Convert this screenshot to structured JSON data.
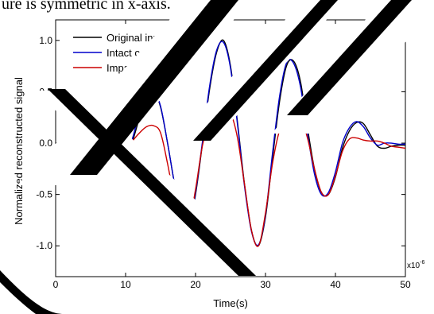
{
  "page": {
    "top_text": "ure is symmetric in x-axis."
  },
  "chart_data": {
    "type": "line",
    "title": "",
    "xlabel": "Time(s)",
    "ylabel": "Normalized reconstructed signal",
    "x_multiplier_base": "x10",
    "x_multiplier_exp": "-6",
    "xlim": [
      0,
      50
    ],
    "ylim": [
      -1.3,
      1.2
    ],
    "xticks": [
      0,
      10,
      20,
      30,
      40,
      50
    ],
    "xtick_labels": [
      "0",
      "10",
      "20",
      "30",
      "40",
      "50"
    ],
    "yticks": [
      -1.0,
      -0.5,
      0.0,
      0.5,
      1.0
    ],
    "ytick_labels": [
      "-1.0",
      "-0.5",
      "0.0",
      "0.5",
      "1.0"
    ],
    "grid": false,
    "legend_position": "top-left",
    "series": [
      {
        "name": "Original input",
        "color": "#000000",
        "x": [
          0,
          2,
          3,
          4,
          5,
          6,
          7,
          8,
          9,
          10,
          11,
          12,
          13,
          14,
          15,
          16,
          17,
          18,
          19,
          20,
          21,
          22,
          23,
          24,
          25,
          26,
          27,
          28,
          29,
          30,
          31,
          32,
          33,
          34,
          35,
          36,
          37,
          38,
          39,
          40,
          41,
          42,
          43,
          44,
          45,
          46,
          47,
          48,
          49,
          50
        ],
        "y": [
          0.0,
          0.0,
          0.02,
          0.05,
          0.06,
          0.04,
          -0.02,
          -0.12,
          -0.2,
          -0.16,
          0.02,
          0.25,
          0.45,
          0.5,
          0.35,
          0.0,
          -0.4,
          -0.75,
          -0.82,
          -0.5,
          0.0,
          0.52,
          0.88,
          1.0,
          0.75,
          0.2,
          -0.4,
          -0.85,
          -1.0,
          -0.72,
          -0.15,
          0.4,
          0.75,
          0.8,
          0.6,
          0.15,
          -0.25,
          -0.48,
          -0.5,
          -0.33,
          -0.05,
          0.12,
          0.2,
          0.19,
          0.08,
          -0.03,
          -0.05,
          -0.03,
          -0.02,
          -0.02
        ]
      },
      {
        "name": "Intact case",
        "color": "#0000cc",
        "x": [
          0,
          2,
          3,
          4,
          5,
          6,
          7,
          8,
          9,
          10,
          11,
          12,
          13,
          14,
          15,
          16,
          17,
          18,
          19,
          20,
          21,
          22,
          23,
          24,
          25,
          26,
          27,
          28,
          29,
          30,
          31,
          32,
          33,
          34,
          35,
          36,
          37,
          38,
          39,
          40,
          41,
          42,
          43,
          44,
          45,
          46,
          47,
          48,
          49,
          50
        ],
        "y": [
          -0.02,
          -0.02,
          -0.02,
          -0.02,
          -0.01,
          -0.02,
          -0.06,
          -0.14,
          -0.2,
          -0.14,
          0.05,
          0.3,
          0.48,
          0.5,
          0.36,
          0.0,
          -0.4,
          -0.75,
          -0.81,
          -0.48,
          0.02,
          0.55,
          0.9,
          0.98,
          0.73,
          0.18,
          -0.42,
          -0.86,
          -0.99,
          -0.7,
          -0.1,
          0.45,
          0.78,
          0.78,
          0.55,
          0.1,
          -0.3,
          -0.5,
          -0.48,
          -0.28,
          0.0,
          0.15,
          0.21,
          0.16,
          0.05,
          -0.02,
          0.0,
          0.0,
          -0.01,
          -0.01
        ]
      },
      {
        "name": "Impaired case",
        "color": "#cc0000",
        "x": [
          0,
          2,
          3,
          4,
          5,
          6,
          7,
          8,
          9,
          10,
          11,
          12,
          13,
          14,
          15,
          16,
          17,
          18,
          19,
          20,
          21,
          22,
          23,
          24,
          25,
          26,
          27,
          28,
          29,
          30,
          31,
          32,
          33,
          34,
          35,
          36,
          37,
          38,
          39,
          40,
          41,
          42,
          43,
          44,
          45,
          46,
          47,
          48,
          49,
          50
        ],
        "y": [
          -0.03,
          -0.03,
          -0.03,
          -0.03,
          -0.03,
          -0.04,
          -0.08,
          -0.15,
          -0.18,
          -0.1,
          0.02,
          0.1,
          0.16,
          0.17,
          0.1,
          -0.2,
          -0.55,
          -0.78,
          -0.8,
          -0.45,
          -0.02,
          0.22,
          0.35,
          0.38,
          0.3,
          0.05,
          -0.4,
          -0.85,
          -1.0,
          -0.68,
          -0.2,
          0.12,
          0.25,
          0.3,
          0.25,
          0.05,
          -0.25,
          -0.48,
          -0.5,
          -0.32,
          -0.08,
          0.04,
          0.05,
          0.03,
          0.02,
          0.02,
          0.0,
          -0.03,
          -0.04,
          -0.05
        ]
      }
    ]
  }
}
